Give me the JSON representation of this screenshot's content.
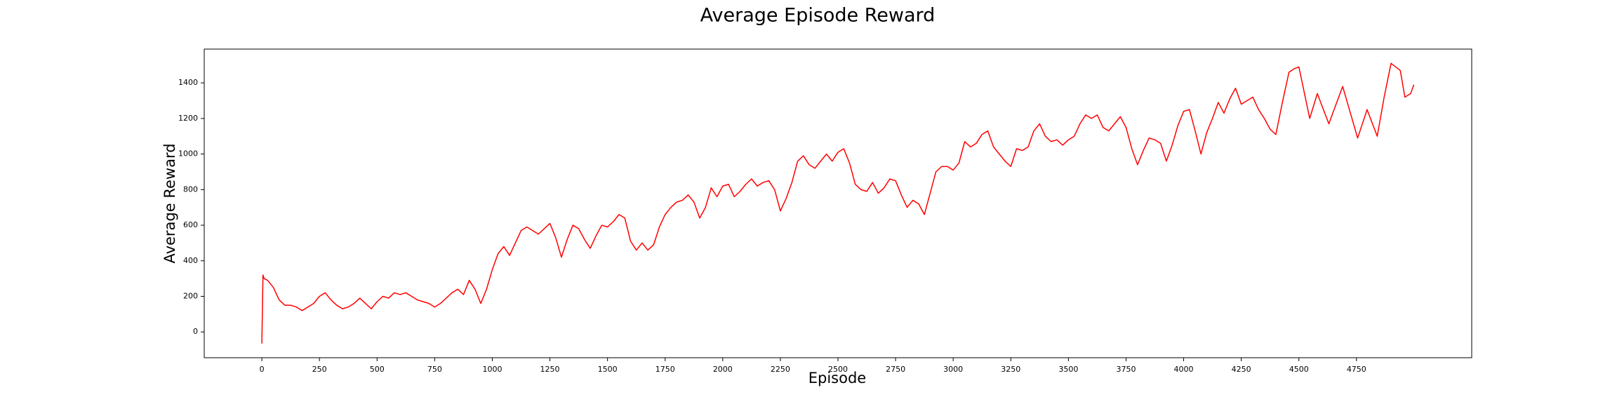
{
  "chart_data": {
    "type": "line",
    "title": "Average Episode Reward",
    "x_label": "Episode",
    "y_label": "Average Reward",
    "color": "#ff0000",
    "x": [
      0,
      5,
      10,
      25,
      50,
      75,
      100,
      125,
      150,
      175,
      200,
      225,
      250,
      275,
      300,
      325,
      350,
      375,
      400,
      425,
      450,
      475,
      500,
      525,
      550,
      575,
      600,
      625,
      650,
      675,
      700,
      725,
      750,
      775,
      800,
      825,
      850,
      875,
      900,
      925,
      950,
      975,
      1000,
      1025,
      1050,
      1075,
      1100,
      1125,
      1150,
      1175,
      1200,
      1225,
      1250,
      1275,
      1300,
      1325,
      1350,
      1375,
      1400,
      1425,
      1450,
      1475,
      1500,
      1525,
      1550,
      1575,
      1600,
      1625,
      1650,
      1675,
      1700,
      1725,
      1750,
      1775,
      1800,
      1825,
      1850,
      1875,
      1900,
      1925,
      1950,
      1975,
      2000,
      2025,
      2050,
      2075,
      2100,
      2125,
      2150,
      2175,
      2200,
      2225,
      2250,
      2275,
      2300,
      2325,
      2350,
      2375,
      2400,
      2425,
      2450,
      2475,
      2500,
      2525,
      2550,
      2575,
      2600,
      2625,
      2650,
      2675,
      2700,
      2725,
      2750,
      2775,
      2800,
      2825,
      2850,
      2875,
      2900,
      2925,
      2950,
      2975,
      3000,
      3025,
      3050,
      3075,
      3100,
      3125,
      3150,
      3175,
      3200,
      3225,
      3250,
      3275,
      3300,
      3325,
      3350,
      3375,
      3400,
      3425,
      3450,
      3475,
      3500,
      3525,
      3550,
      3575,
      3600,
      3625,
      3650,
      3675,
      3700,
      3725,
      3750,
      3775,
      3800,
      3825,
      3850,
      3875,
      3900,
      3925,
      3950,
      3975,
      4000,
      4025,
      4050,
      4075,
      4100,
      4125,
      4150,
      4175,
      4200,
      4225,
      4250,
      4275,
      4300,
      4325,
      4350,
      4375,
      4400,
      4430,
      4457,
      4480,
      4500,
      4547,
      4580,
      4630,
      4690,
      4755,
      4796,
      4840,
      4870,
      4900,
      4940,
      4960,
      4985,
      4999
    ],
    "values": [
      -65,
      320,
      300,
      290,
      250,
      180,
      150,
      150,
      140,
      120,
      140,
      160,
      200,
      220,
      180,
      150,
      130,
      140,
      160,
      190,
      160,
      130,
      170,
      200,
      190,
      220,
      210,
      220,
      200,
      180,
      170,
      160,
      140,
      160,
      190,
      220,
      240,
      210,
      290,
      240,
      160,
      240,
      350,
      440,
      480,
      430,
      500,
      570,
      590,
      570,
      550,
      580,
      610,
      530,
      420,
      520,
      600,
      580,
      520,
      470,
      540,
      600,
      590,
      620,
      660,
      640,
      510,
      460,
      500,
      460,
      490,
      590,
      660,
      700,
      730,
      740,
      770,
      730,
      640,
      700,
      810,
      760,
      820,
      830,
      760,
      790,
      830,
      860,
      820,
      840,
      850,
      800,
      680,
      750,
      840,
      960,
      990,
      940,
      920,
      960,
      1000,
      960,
      1010,
      1030,
      950,
      830,
      800,
      790,
      840,
      780,
      810,
      860,
      850,
      770,
      700,
      740,
      720,
      660,
      780,
      900,
      930,
      930,
      910,
      950,
      1070,
      1040,
      1060,
      1110,
      1130,
      1040,
      1000,
      960,
      930,
      1030,
      1020,
      1040,
      1130,
      1170,
      1100,
      1070,
      1080,
      1050,
      1080,
      1100,
      1170,
      1220,
      1200,
      1220,
      1150,
      1130,
      1170,
      1210,
      1150,
      1030,
      940,
      1020,
      1090,
      1080,
      1060,
      960,
      1050,
      1160,
      1240,
      1250,
      1130,
      1000,
      1120,
      1200,
      1290,
      1230,
      1310,
      1370,
      1280,
      1300,
      1320,
      1250,
      1200,
      1140,
      1110,
      1300,
      1460,
      1480,
      1490,
      1200,
      1340,
      1170,
      1380,
      1090,
      1250,
      1100,
      1320,
      1510,
      1470,
      1320,
      1340,
      1390
    ],
    "xlim": [
      -250,
      5250
    ],
    "ylim": [
      -145,
      1590
    ],
    "xticks": [
      0,
      250,
      500,
      750,
      1000,
      1250,
      1500,
      1750,
      2000,
      2250,
      2500,
      2750,
      3000,
      3250,
      3500,
      3750,
      4000,
      4250,
      4500,
      4750
    ],
    "yticks": [
      0,
      200,
      400,
      600,
      800,
      1000,
      1200,
      1400
    ]
  }
}
